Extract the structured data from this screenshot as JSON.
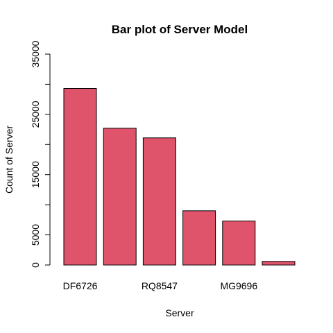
{
  "chart_data": {
    "type": "bar",
    "title": "Bar plot of Server Model",
    "xlabel": "Server",
    "ylabel": "Count of Server",
    "categories": [
      "DF6726",
      "",
      "RQ8547",
      "",
      "MG9696",
      ""
    ],
    "values": [
      29300,
      22700,
      21100,
      9000,
      7300,
      600
    ],
    "ylim": [
      0,
      35000
    ],
    "yticks": [
      0,
      5000,
      15000,
      25000,
      35000
    ],
    "bar_color": "#df536b",
    "grid": false
  }
}
